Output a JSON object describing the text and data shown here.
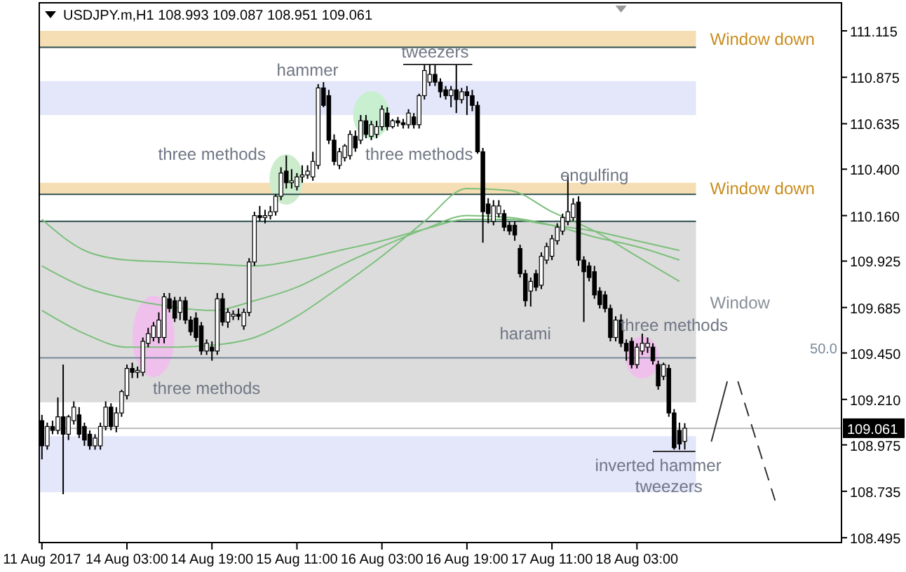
{
  "chart_data": {
    "type": "candlestick",
    "title": "USDJPY.m,H1  108.993 109.087 108.951 109.061",
    "categories": [
      "11 Aug 2017",
      null,
      null,
      null,
      null,
      null,
      null,
      null,
      null,
      null,
      null,
      null,
      null,
      null,
      null,
      null,
      "14 Aug 03:00",
      null,
      null,
      null,
      null,
      null,
      null,
      null,
      null,
      null,
      null,
      null,
      null,
      null,
      null,
      null,
      "14 Aug 19:00",
      null,
      null,
      null,
      null,
      null,
      null,
      null,
      null,
      null,
      null,
      null,
      null,
      null,
      null,
      null,
      "15 Aug 11:00",
      null,
      null,
      null,
      null,
      null,
      null,
      null,
      null,
      null,
      null,
      null,
      null,
      null,
      null,
      null,
      "16 Aug 03:00",
      null,
      null,
      null,
      null,
      null,
      null,
      null,
      null,
      null,
      null,
      null,
      null,
      null,
      null,
      null,
      "16 Aug 19:00",
      null,
      null,
      null,
      null,
      null,
      null,
      null,
      null,
      null,
      null,
      null,
      null,
      null,
      null,
      null,
      "17 Aug 11:00",
      null,
      null,
      null,
      null,
      null,
      null,
      null,
      null,
      null,
      null,
      null,
      null,
      null,
      null,
      null,
      "18 Aug 03:00",
      null,
      null,
      null,
      null,
      null,
      null,
      null,
      null,
      null,
      null,
      null,
      null,
      null,
      null,
      null,
      null,
      null,
      null,
      null,
      null,
      null,
      null,
      null,
      null,
      null,
      null,
      null,
      null,
      null,
      null,
      null,
      null,
      null,
      null,
      null,
      null,
      null,
      null
    ],
    "ohlc": [
      [
        109.1,
        109.13,
        108.9,
        108.97
      ],
      [
        108.97,
        109.09,
        108.95,
        109.07
      ],
      [
        109.07,
        109.1,
        109.03,
        109.05
      ],
      [
        109.05,
        109.22,
        109.03,
        109.12
      ],
      [
        109.12,
        109.39,
        108.72,
        109.03
      ],
      [
        109.03,
        109.13,
        109.0,
        109.12
      ],
      [
        109.1,
        109.2,
        109.08,
        109.17
      ],
      [
        109.13,
        109.17,
        109.01,
        109.03
      ],
      [
        109.07,
        109.09,
        108.97,
        109.0
      ],
      [
        109.03,
        109.05,
        108.95,
        108.97
      ],
      [
        108.97,
        109.03,
        108.95,
        109.01
      ],
      [
        108.97,
        109.09,
        108.95,
        109.07
      ],
      [
        109.07,
        109.2,
        109.05,
        109.17
      ],
      [
        109.17,
        109.19,
        109.05,
        109.07
      ],
      [
        109.07,
        109.17,
        109.04,
        109.14
      ],
      [
        109.14,
        109.26,
        109.12,
        109.25
      ],
      [
        109.23,
        109.39,
        109.21,
        109.37
      ],
      [
        109.37,
        109.4,
        109.32,
        109.35
      ],
      [
        109.35,
        109.38,
        109.32,
        109.36
      ],
      [
        109.35,
        109.53,
        109.33,
        109.51
      ],
      [
        109.5,
        109.58,
        109.48,
        109.55
      ],
      [
        109.53,
        109.61,
        109.51,
        109.59
      ],
      [
        109.53,
        109.66,
        109.5,
        109.62
      ],
      [
        109.53,
        109.76,
        109.5,
        109.74
      ],
      [
        109.73,
        109.76,
        109.66,
        109.68
      ],
      [
        109.72,
        109.74,
        109.61,
        109.63
      ],
      [
        109.66,
        109.74,
        109.62,
        109.72
      ],
      [
        109.72,
        109.74,
        109.6,
        109.62
      ],
      [
        109.62,
        109.64,
        109.54,
        109.56
      ],
      [
        109.63,
        109.66,
        109.51,
        109.53
      ],
      [
        109.59,
        109.61,
        109.44,
        109.46
      ],
      [
        109.46,
        109.52,
        109.44,
        109.5
      ],
      [
        109.48,
        109.51,
        109.41,
        109.46
      ],
      [
        109.46,
        109.76,
        109.44,
        109.73
      ],
      [
        109.73,
        109.76,
        109.59,
        109.61
      ],
      [
        109.61,
        109.68,
        109.58,
        109.66
      ],
      [
        109.64,
        109.67,
        109.62,
        109.65
      ],
      [
        109.65,
        109.68,
        109.62,
        109.64
      ],
      [
        109.59,
        109.68,
        109.57,
        109.66
      ],
      [
        109.66,
        109.94,
        109.64,
        109.92
      ],
      [
        109.92,
        110.18,
        109.9,
        110.16
      ],
      [
        110.16,
        110.21,
        110.13,
        110.15
      ],
      [
        110.15,
        110.19,
        110.12,
        110.16
      ],
      [
        110.16,
        110.21,
        110.14,
        110.18
      ],
      [
        110.18,
        110.27,
        110.16,
        110.26
      ],
      [
        110.26,
        110.41,
        110.24,
        110.38
      ],
      [
        110.39,
        110.47,
        110.3,
        110.33
      ],
      [
        110.33,
        110.4,
        110.3,
        110.34
      ],
      [
        110.31,
        110.38,
        110.29,
        110.36
      ],
      [
        110.36,
        110.42,
        110.33,
        110.37
      ],
      [
        110.37,
        110.42,
        110.35,
        110.39
      ],
      [
        110.36,
        110.49,
        110.34,
        110.44
      ],
      [
        110.42,
        110.84,
        110.4,
        110.82
      ],
      [
        110.82,
        110.85,
        110.72,
        110.73
      ],
      [
        110.78,
        110.81,
        110.53,
        110.55
      ],
      [
        110.55,
        110.58,
        110.42,
        110.44
      ],
      [
        110.42,
        110.51,
        110.4,
        110.49
      ],
      [
        110.46,
        110.53,
        110.44,
        110.52
      ],
      [
        110.47,
        110.6,
        110.45,
        110.58
      ],
      [
        110.57,
        110.6,
        110.49,
        110.51
      ],
      [
        110.55,
        110.68,
        110.53,
        110.65
      ],
      [
        110.65,
        110.68,
        110.56,
        110.58
      ],
      [
        110.57,
        110.65,
        110.55,
        110.63
      ],
      [
        110.58,
        110.65,
        110.56,
        110.62
      ],
      [
        110.62,
        110.73,
        110.6,
        110.71
      ],
      [
        110.69,
        110.72,
        110.6,
        110.62
      ],
      [
        110.62,
        110.66,
        110.61,
        110.65
      ],
      [
        110.65,
        110.67,
        110.62,
        110.64
      ],
      [
        110.64,
        110.66,
        110.61,
        110.63
      ],
      [
        110.63,
        110.71,
        110.61,
        110.69
      ],
      [
        110.67,
        110.69,
        110.61,
        110.63
      ],
      [
        110.63,
        110.79,
        110.61,
        110.78
      ],
      [
        110.78,
        110.94,
        110.76,
        110.91
      ],
      [
        110.85,
        110.94,
        110.83,
        110.89
      ],
      [
        110.89,
        110.94,
        110.83,
        110.85
      ],
      [
        110.85,
        110.87,
        110.77,
        110.8
      ],
      [
        110.81,
        110.83,
        110.76,
        110.78
      ],
      [
        110.78,
        110.83,
        110.72,
        110.81
      ],
      [
        110.81,
        110.94,
        110.69,
        110.76
      ],
      [
        110.76,
        110.82,
        110.74,
        110.8
      ],
      [
        110.8,
        110.83,
        110.68,
        110.78
      ],
      [
        110.78,
        110.81,
        110.7,
        110.73
      ],
      [
        110.73,
        110.75,
        110.48,
        110.49
      ],
      [
        110.49,
        110.51,
        110.02,
        110.18
      ],
      [
        110.22,
        110.25,
        110.12,
        110.17
      ],
      [
        110.13,
        110.24,
        110.11,
        110.21
      ],
      [
        110.17,
        110.24,
        110.15,
        110.21
      ],
      [
        110.17,
        110.19,
        110.08,
        110.1
      ],
      [
        110.11,
        110.13,
        110.06,
        110.08
      ],
      [
        110.11,
        110.13,
        110.03,
        110.06
      ],
      [
        109.99,
        110.01,
        109.84,
        109.86
      ],
      [
        109.86,
        109.88,
        109.69,
        109.72
      ],
      [
        109.77,
        109.84,
        109.69,
        109.82
      ],
      [
        109.86,
        109.88,
        109.77,
        109.79
      ],
      [
        109.8,
        109.97,
        109.78,
        109.95
      ],
      [
        109.93,
        110.02,
        109.91,
        110.0
      ],
      [
        109.95,
        110.06,
        109.93,
        110.04
      ],
      [
        110.03,
        110.12,
        110.01,
        110.1
      ],
      [
        110.08,
        110.17,
        110.06,
        110.15
      ],
      [
        110.13,
        110.36,
        110.11,
        110.18
      ],
      [
        110.15,
        110.25,
        110.13,
        110.22
      ],
      [
        110.23,
        110.26,
        109.9,
        109.93
      ],
      [
        109.93,
        109.95,
        109.61,
        109.87
      ],
      [
        109.9,
        109.92,
        109.82,
        109.84
      ],
      [
        109.87,
        109.9,
        109.73,
        109.75
      ],
      [
        109.77,
        109.79,
        109.68,
        109.7
      ],
      [
        109.75,
        109.77,
        109.66,
        109.68
      ],
      [
        109.68,
        109.7,
        109.51,
        109.53
      ],
      [
        109.53,
        109.64,
        109.51,
        109.62
      ],
      [
        109.62,
        109.65,
        109.48,
        109.5
      ],
      [
        109.5,
        109.52,
        109.41,
        109.46
      ],
      [
        109.51,
        109.53,
        109.37,
        109.39
      ],
      [
        109.39,
        109.5,
        109.37,
        109.48
      ],
      [
        109.46,
        109.55,
        109.44,
        109.5
      ],
      [
        109.48,
        109.53,
        109.45,
        109.5
      ],
      [
        109.48,
        109.5,
        109.39,
        109.41
      ],
      [
        109.39,
        109.41,
        109.26,
        109.28
      ],
      [
        109.33,
        109.4,
        109.31,
        109.39
      ],
      [
        109.37,
        109.39,
        109.12,
        109.14
      ],
      [
        109.14,
        109.16,
        108.95,
        108.96
      ],
      [
        109.05,
        109.09,
        108.95,
        108.98
      ],
      [
        108.993,
        109.087,
        108.951,
        109.061
      ],
      null,
      null,
      null,
      null,
      null,
      null,
      null,
      null,
      null,
      null,
      null,
      null,
      null,
      null,
      null,
      null,
      null,
      null,
      null,
      null,
      null,
      null,
      null,
      null,
      null,
      null,
      null,
      null,
      null
    ],
    "series": [
      {
        "type": "line",
        "color": "#7cc07c",
        "values": [
          110.14,
          null,
          null,
          null,
          null,
          null,
          null,
          null,
          109.98,
          null,
          null,
          null,
          null,
          null,
          null,
          null,
          109.93,
          null,
          null,
          null,
          null,
          null,
          null,
          null,
          109.92,
          null,
          null,
          null,
          null,
          null,
          null,
          null,
          109.91,
          null,
          null,
          null,
          null,
          null,
          null,
          null,
          109.9,
          null,
          null,
          null,
          null,
          null,
          null,
          null,
          109.93,
          null,
          null,
          null,
          null,
          null,
          null,
          null,
          109.98,
          null,
          null,
          null,
          null,
          null,
          null,
          null,
          110.03,
          null,
          null,
          null,
          null,
          null,
          null,
          null,
          110.09,
          null,
          null,
          null,
          null,
          null,
          null,
          null,
          110.14,
          null,
          null,
          null,
          null,
          null,
          null,
          null,
          110.14,
          null,
          null,
          null,
          null,
          null,
          null,
          null,
          110.11,
          null,
          null,
          null,
          null,
          null,
          null,
          null,
          110.08,
          null,
          null,
          null,
          null,
          null,
          null,
          null,
          110.03,
          null,
          null,
          null,
          null,
          null,
          null,
          null,
          109.98,
          null,
          null,
          null,
          null,
          null,
          null,
          null,
          null,
          null,
          null,
          null,
          null,
          null,
          null,
          null,
          null,
          null,
          null,
          null,
          null,
          null,
          null,
          null,
          null,
          null,
          null,
          null,
          null,
          null,
          null
        ]
      },
      {
        "type": "line",
        "color": "#7cc07c",
        "values": [
          109.9,
          null,
          null,
          null,
          null,
          null,
          null,
          null,
          109.79,
          null,
          null,
          null,
          null,
          null,
          null,
          null,
          109.73,
          null,
          null,
          null,
          null,
          null,
          null,
          null,
          109.69,
          null,
          null,
          null,
          null,
          null,
          null,
          null,
          109.67,
          null,
          null,
          null,
          null,
          null,
          null,
          null,
          109.72,
          null,
          null,
          null,
          null,
          null,
          null,
          null,
          109.79,
          null,
          null,
          null,
          null,
          null,
          null,
          null,
          109.9,
          null,
          null,
          null,
          null,
          null,
          null,
          null,
          110.0,
          null,
          null,
          null,
          null,
          null,
          null,
          null,
          110.09,
          null,
          null,
          null,
          null,
          null,
          null,
          null,
          110.16,
          null,
          null,
          null,
          null,
          null,
          null,
          null,
          110.15,
          null,
          null,
          null,
          null,
          null,
          null,
          null,
          110.11,
          null,
          null,
          null,
          null,
          null,
          null,
          null,
          110.05,
          null,
          null,
          null,
          null,
          null,
          null,
          null,
          110.0,
          null,
          null,
          null,
          null,
          null,
          null,
          null,
          109.93,
          null,
          null,
          null,
          null,
          null,
          null,
          null,
          null,
          null,
          null,
          null,
          null,
          null,
          null,
          null,
          null,
          null,
          null,
          null,
          null,
          null,
          null,
          null,
          null,
          null,
          null,
          null,
          null,
          null,
          null
        ]
      },
      {
        "type": "line",
        "color": "#7cc07c",
        "values": [
          109.67,
          null,
          null,
          null,
          null,
          null,
          null,
          null,
          109.55,
          null,
          null,
          null,
          null,
          null,
          null,
          null,
          109.48,
          null,
          null,
          null,
          null,
          null,
          null,
          null,
          109.48,
          null,
          null,
          null,
          null,
          null,
          null,
          null,
          109.49,
          null,
          null,
          null,
          null,
          null,
          null,
          null,
          109.53,
          null,
          null,
          null,
          null,
          null,
          null,
          null,
          109.64,
          null,
          null,
          null,
          null,
          null,
          null,
          null,
          109.79,
          null,
          null,
          null,
          null,
          null,
          null,
          null,
          109.95,
          null,
          null,
          null,
          null,
          null,
          null,
          null,
          110.13,
          null,
          null,
          null,
          null,
          null,
          null,
          null,
          110.3,
          null,
          null,
          null,
          null,
          null,
          null,
          null,
          110.29,
          null,
          null,
          null,
          null,
          null,
          null,
          null,
          110.18,
          null,
          null,
          null,
          null,
          null,
          null,
          null,
          110.08,
          null,
          null,
          null,
          null,
          null,
          null,
          null,
          109.95,
          null,
          null,
          null,
          null,
          null,
          null,
          null,
          109.82,
          null,
          null,
          null,
          null,
          null,
          null,
          null,
          null,
          null,
          null,
          null,
          null,
          null,
          null,
          null,
          null,
          null,
          null,
          null,
          null,
          null,
          null,
          null,
          null,
          null,
          null,
          null,
          null,
          null,
          null
        ]
      }
    ],
    "ylim": [
      108.47,
      111.26
    ],
    "yticks": [
      111.115,
      110.875,
      110.635,
      {
        "value": 110.4,
        "label": "110.400"
      },
      {
        "value": 110.16,
        "label": "110.160"
      },
      109.925,
      109.685,
      {
        "value": 109.45,
        "label": "109.450"
      },
      {
        "value": 109.21,
        "label": "109.210"
      },
      108.975,
      108.735,
      108.495
    ],
    "bands": [
      {
        "axis": "y",
        "from": 111.03,
        "to": 111.115,
        "label": "Window down",
        "color": "#f5deb3"
      },
      {
        "axis": "y",
        "from": 110.68,
        "to": 110.855,
        "color": "#e4e6fa"
      },
      {
        "axis": "y",
        "from": 110.27,
        "to": 110.33,
        "label": "Window down",
        "color": "#f5deb3"
      },
      {
        "axis": "y",
        "from": 109.195,
        "to": 110.13,
        "label": "Window",
        "color": "#dcdcdc"
      },
      {
        "axis": "y",
        "from": 108.73,
        "to": 109.02,
        "color": "#e4e6fa"
      }
    ],
    "ref_lines": [
      {
        "axis": "y",
        "value": 111.03,
        "color": "#2f4f4f"
      },
      {
        "axis": "y",
        "value": 110.27,
        "color": "#2f4f4f"
      },
      {
        "axis": "y",
        "value": 110.13,
        "color": "#2f4f4f"
      },
      {
        "axis": "y",
        "value": 109.425,
        "color": "#778899"
      },
      {
        "axis": "y",
        "value": 109.061,
        "label": "109.061",
        "color": "#c0c0c0"
      }
    ],
    "annotations": [
      "hammer",
      "tweezers",
      "three methods",
      "three methods",
      "three methods",
      "engulfing",
      "harami",
      "three methods",
      "inverted hammer",
      "tweezers",
      "50.0"
    ]
  }
}
